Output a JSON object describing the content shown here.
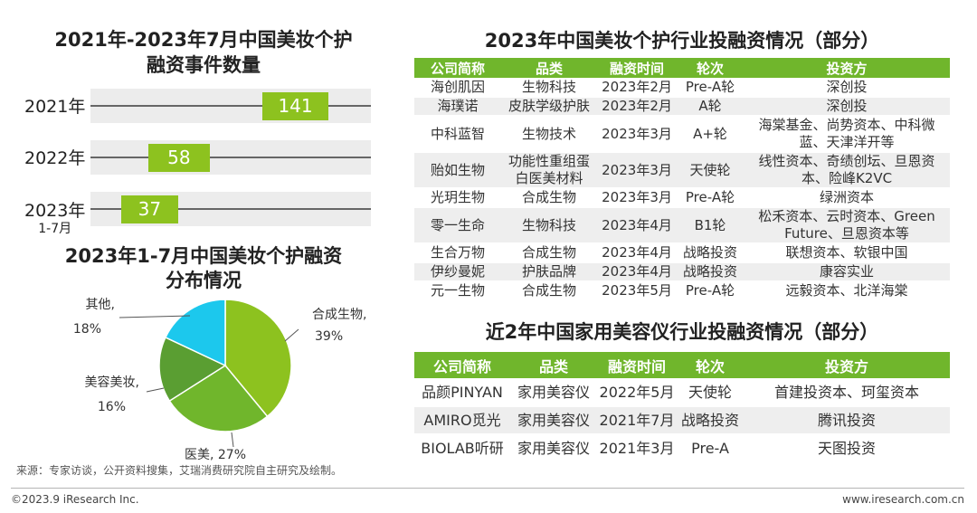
{
  "left": {
    "bar_title_line1": "2021年-2023年7月中国美妆个护",
    "bar_title_line2": "融资事件数量",
    "pie_title_line1": "2023年1-7月中国美妆个护融资",
    "pie_title_line2": "分布情况",
    "source": "来源：专家访谈，公开资料搜集，艾瑞消费研究院自主研究及绘制。"
  },
  "chart_data": [
    {
      "type": "bar",
      "orientation": "horizontal",
      "title": "2021年-2023年7月中国美妆个护融资事件数量",
      "categories": [
        "2021年",
        "2022年",
        "2023年 1-7月"
      ],
      "category_labels": [
        {
          "main": "2021年",
          "sub": ""
        },
        {
          "main": "2022年",
          "sub": ""
        },
        {
          "main": "2023年",
          "sub": "1-7月"
        }
      ],
      "values": [
        141,
        58,
        37
      ],
      "xlim": [
        0,
        200
      ],
      "color": "#8dc21f",
      "data_labels": true
    },
    {
      "type": "pie",
      "title": "2023年1-7月中国美妆个护融资分布情况",
      "slices": [
        {
          "label": "合成生物,",
          "percent_text": "39%",
          "value": 39,
          "color": "#8dc21f"
        },
        {
          "label": "医美,",
          "percent_text": "27%",
          "value": 27,
          "color": "#70b62c"
        },
        {
          "label": "美容美妆,",
          "percent_text": "16%",
          "value": 16,
          "color": "#5a9e32"
        },
        {
          "label": "其他,",
          "percent_text": "18%",
          "value": 18,
          "color": "#1cc8ed"
        }
      ]
    }
  ],
  "table1": {
    "title": "2023年中国美妆个护行业投融资情况（部分）",
    "headers": [
      "公司简称",
      "品类",
      "融资时间",
      "轮次",
      "投资方"
    ],
    "rows": [
      {
        "cells": [
          "海创肌因",
          "生物科技",
          "2023年2月",
          "Pre-A轮",
          "深创投"
        ],
        "lines": 1
      },
      {
        "cells": [
          "海璞诺",
          "皮肤学级护肤",
          "2023年2月",
          "A轮",
          "深创投"
        ],
        "lines": 1
      },
      {
        "cells": [
          "中科蓝智",
          "生物技术",
          "2023年3月",
          "A+轮",
          "海棠基金、尚势资本、中科微蓝、天津洋开等"
        ],
        "lines": 2
      },
      {
        "cells": [
          "贻如生物",
          "功能性重组蛋白医美材料",
          "2023年3月",
          "天使轮",
          "线性资本、奇绩创坛、旦恩资本、险峰K2VC"
        ],
        "lines": 2
      },
      {
        "cells": [
          "光玥生物",
          "合成生物",
          "2023年3月",
          "Pre-A轮",
          "绿洲资本"
        ],
        "lines": 1
      },
      {
        "cells": [
          "零一生命",
          "生物科技",
          "2023年4月",
          "B1轮",
          "松禾资本、云时资本、Green Future、旦恩资本等"
        ],
        "lines": 2
      },
      {
        "cells": [
          "生合万物",
          "合成生物",
          "2023年4月",
          "战略投资",
          "联想资本、软银中国"
        ],
        "lines": 1
      },
      {
        "cells": [
          "伊纱曼妮",
          "护肤品牌",
          "2023年4月",
          "战略投资",
          "康容实业"
        ],
        "lines": 1
      },
      {
        "cells": [
          "元一生物",
          "合成生物",
          "2023年5月",
          "Pre-A轮",
          "远毅资本、北洋海棠"
        ],
        "lines": 1
      }
    ]
  },
  "table2": {
    "title": "近2年中国家用美容仪行业投融资情况（部分）",
    "headers": [
      "公司简称",
      "品类",
      "融资时间",
      "轮次",
      "投资方"
    ],
    "rows": [
      {
        "cells": [
          "品颜PINYAN",
          "家用美容仪",
          "2022年5月",
          "天使轮",
          "首建投资本、珂玺资本"
        ]
      },
      {
        "cells": [
          "AMIRO觅光",
          "家用美容仪",
          "2021年7月",
          "战略投资",
          "腾讯投资"
        ]
      },
      {
        "cells": [
          "BIOLAB听研",
          "家用美容仪",
          "2021年3月",
          "Pre-A",
          "天图投资"
        ]
      }
    ]
  },
  "footer": {
    "copyright": "©2023.9 iResearch Inc.",
    "website": "www.iresearch.com.cn"
  }
}
